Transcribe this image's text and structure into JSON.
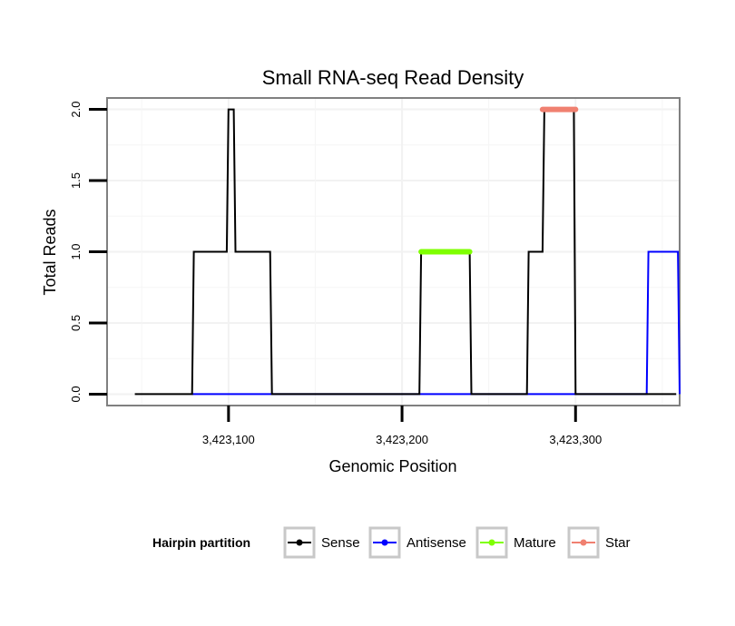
{
  "chart_data": {
    "type": "line",
    "title": "Small RNA-seq Read Density",
    "xlabel": "Genomic Position",
    "ylabel": "Total Reads",
    "xlim": [
      3423030,
      3423360
    ],
    "ylim": [
      -0.08,
      2.08
    ],
    "x_ticks": [
      3423100,
      3423200,
      3423300
    ],
    "x_tick_labels": [
      "3,423,100",
      "3,423,200",
      "3,423,300"
    ],
    "y_ticks": [
      0,
      0.5,
      1,
      1.5,
      2
    ],
    "y_tick_labels": [
      "0.0",
      "0.5",
      "1.0",
      "1.5",
      "2.0"
    ],
    "grid": true,
    "legend": {
      "title": "Hairpin partition",
      "position": "bottom",
      "entries": [
        {
          "name": "Sense",
          "color": "#000000"
        },
        {
          "name": "Antisense",
          "color": "#0000FF"
        },
        {
          "name": "Mature",
          "color": "#7FFF00"
        },
        {
          "name": "Star",
          "color": "#F08070"
        }
      ]
    },
    "series": [
      {
        "name": "Sense",
        "color": "#000000",
        "x": [
          3423046,
          3423079,
          3423080,
          3423099,
          3423100,
          3423101,
          3423103,
          3423104,
          3423124,
          3423125,
          3423210,
          3423211,
          3423239,
          3423240,
          3423272,
          3423273,
          3423281,
          3423282,
          3423289,
          3423290,
          3423299,
          3423300,
          3423358
        ],
        "values": [
          0,
          0,
          1,
          1,
          2,
          2,
          2,
          1,
          1,
          0,
          0,
          1,
          1,
          0,
          0,
          1,
          1,
          2,
          2,
          2,
          2,
          0,
          0
        ]
      },
      {
        "name": "Antisense",
        "color": "#0000FF",
        "x": [
          3423079,
          3423124,
          3423211,
          3423240,
          3423273,
          3423300,
          3423341,
          3423342,
          3423359,
          3423360
        ],
        "values": [
          0,
          0,
          0,
          0,
          0,
          0,
          0,
          1,
          1,
          0
        ]
      },
      {
        "name": "Mature",
        "color": "#7FFF00",
        "x": [
          3423211,
          3423239
        ],
        "values": [
          1,
          1
        ]
      },
      {
        "name": "Star",
        "color": "#F08070",
        "x": [
          3423281,
          3423300
        ],
        "values": [
          2,
          2
        ]
      }
    ]
  }
}
